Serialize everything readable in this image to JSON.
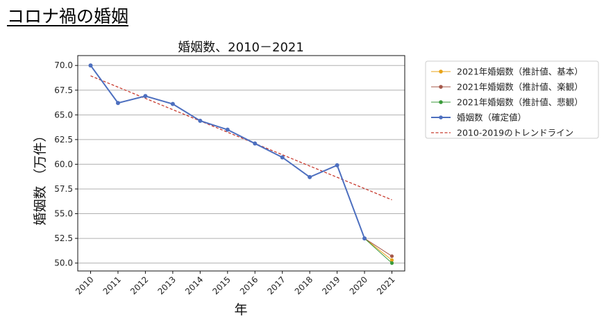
{
  "page": {
    "title": "コロナ禍の婚姻"
  },
  "chart_data": {
    "type": "line",
    "title": "婚姻数、2010－2021",
    "xlabel": "年",
    "ylabel": "婚姻数 （万件）",
    "ylim": [
      49.2,
      71.0
    ],
    "yticks": [
      "50.0",
      "52.5",
      "55.0",
      "57.5",
      "60.0",
      "62.5",
      "65.0",
      "67.5",
      "70.0"
    ],
    "x": [
      2010,
      2011,
      2012,
      2013,
      2014,
      2015,
      2016,
      2017,
      2018,
      2019,
      2020,
      2021
    ],
    "grid": "horizontal",
    "legend_position": "outside-top-right",
    "series": [
      {
        "name": "2021年婚姻数（推計値、基本）",
        "color": "#e8a317",
        "style": "solid-marker-thin",
        "points": [
          [
            2020,
            52.5
          ],
          [
            2021,
            50.3
          ]
        ]
      },
      {
        "name": "2021年婚姻数（推計値、楽観）",
        "color": "#a5584a",
        "style": "solid-marker-thin",
        "points": [
          [
            2020,
            52.5
          ],
          [
            2021,
            50.7
          ]
        ]
      },
      {
        "name": "2021年婚姻数（推計値、悲観）",
        "color": "#3a9a3a",
        "style": "solid-marker-thin",
        "points": [
          [
            2020,
            52.5
          ],
          [
            2021,
            50.0
          ]
        ]
      },
      {
        "name": "婚姻数（確定値）",
        "color": "#4d6fbf",
        "style": "solid-marker",
        "points": [
          [
            2010,
            70.0
          ],
          [
            2011,
            66.2
          ],
          [
            2012,
            66.9
          ],
          [
            2013,
            66.1
          ],
          [
            2014,
            64.4
          ],
          [
            2015,
            63.5
          ],
          [
            2016,
            62.1
          ],
          [
            2017,
            60.7
          ],
          [
            2018,
            58.7
          ],
          [
            2019,
            59.9
          ],
          [
            2020,
            52.5
          ]
        ]
      },
      {
        "name": "2010-2019のトレンドライン",
        "color": "#c83a2e",
        "style": "dashed",
        "points": [
          [
            2010,
            68.95
          ],
          [
            2021,
            56.4
          ]
        ]
      }
    ]
  }
}
